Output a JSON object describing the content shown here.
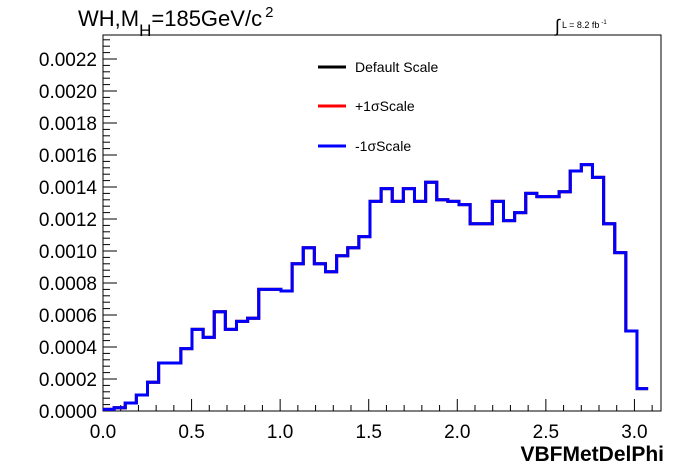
{
  "title": {
    "prefix": "WH,M",
    "subscript": "H",
    "value": "=185GeV/c",
    "superscript": "2"
  },
  "luminosity": {
    "integral_symbol": "∫",
    "text": "L = 8.2 fb",
    "superscript": "-1"
  },
  "chart_data": {
    "type": "line",
    "xlabel": "VBFMetDelPhi",
    "ylabel": "",
    "xlim": [
      0.0,
      3.15
    ],
    "ylim": [
      0.0,
      0.00235
    ],
    "x_ticks": [
      "0.0",
      "0.5",
      "1.0",
      "1.5",
      "2.0",
      "2.5",
      "3.0"
    ],
    "x_tick_values": [
      0.0,
      0.5,
      1.0,
      1.5,
      2.0,
      2.5,
      3.0
    ],
    "y_ticks": [
      "0.0000",
      "0.0002",
      "0.0004",
      "0.0006",
      "0.0008",
      "0.0010",
      "0.0012",
      "0.0014",
      "0.0016",
      "0.0018",
      "0.0020",
      "0.0022"
    ],
    "y_tick_values": [
      0.0,
      0.0002,
      0.0004,
      0.0006,
      0.0008,
      0.001,
      0.0012,
      0.0014,
      0.0016,
      0.0018,
      0.002,
      0.0022
    ],
    "bin_edges_start": 0.0,
    "bin_width": 0.0628,
    "values": [
      1e-05,
      2e-05,
      5e-05,
      0.0001,
      0.00018,
      0.0003,
      0.0003,
      0.00039,
      0.00051,
      0.00046,
      0.00062,
      0.00051,
      0.00056,
      0.00058,
      0.00076,
      0.00076,
      0.00075,
      0.00092,
      0.00102,
      0.00092,
      0.00087,
      0.00097,
      0.00102,
      0.00109,
      0.00131,
      0.00139,
      0.00131,
      0.00139,
      0.00131,
      0.00143,
      0.00132,
      0.00131,
      0.00129,
      0.00117,
      0.00117,
      0.00131,
      0.00119,
      0.00124,
      0.00136,
      0.00134,
      0.00134,
      0.00137,
      0.0015,
      0.00154,
      0.00146,
      0.00117,
      0.00099,
      0.0005,
      0.00014
    ],
    "series": [
      {
        "name": "Default Scale",
        "color": "#000000"
      },
      {
        "name": "+1σScale",
        "color": "#ff0000"
      },
      {
        "name": "-1σScale",
        "color": "#0000ff"
      }
    ],
    "legend_position": "top-center",
    "grid": false
  }
}
